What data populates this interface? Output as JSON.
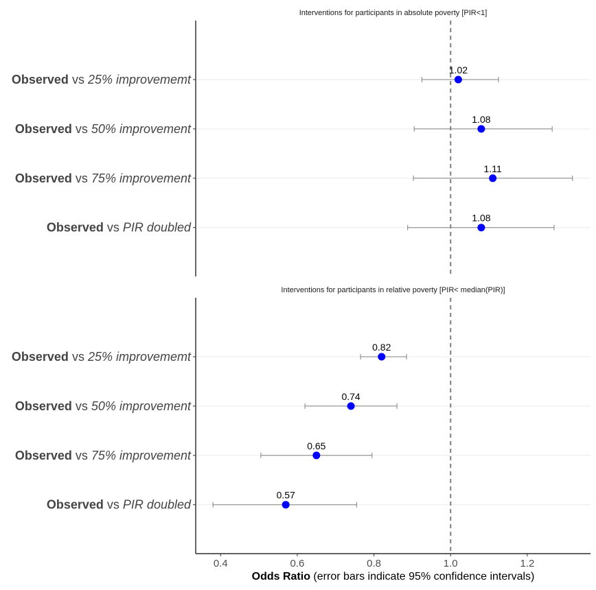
{
  "chart_data": {
    "type": "scatter",
    "xlabel_bold": "Odds Ratio",
    "xlabel_rest": " (error bars indicate 95% confidence intervals)",
    "x_ticks": [
      0.4,
      0.6,
      0.8,
      1.0,
      1.2
    ],
    "x_tick_labels": [
      "0.4",
      "0.6",
      "0.8",
      "1.0",
      "1.2"
    ],
    "xlim": [
      0.335,
      1.365
    ],
    "reference_line": 1.0,
    "point_color": "#0000ff",
    "errorbar_color": "#808080",
    "row_prefix": "Observed",
    "row_joiner": " vs ",
    "panels": [
      {
        "title": "Interventions for participants in absolute poverty [PIR<1]",
        "rows": [
          {
            "label": "25% improvememt",
            "or": 1.02,
            "lo": 0.925,
            "hi": 1.125,
            "text": "1.02"
          },
          {
            "label": "50% improvement",
            "or": 1.08,
            "lo": 0.905,
            "hi": 1.265,
            "text": "1.08"
          },
          {
            "label": "75% improvement",
            "or": 1.11,
            "lo": 0.903,
            "hi": 1.318,
            "text": "1.11"
          },
          {
            "label": "PIR doubled",
            "or": 1.08,
            "lo": 0.888,
            "hi": 1.27,
            "text": "1.08"
          }
        ]
      },
      {
        "title": "Interventions for participants in relative poverty [PIR< median(PIR)]",
        "rows": [
          {
            "label": "25% improvememt",
            "or": 0.82,
            "lo": 0.765,
            "hi": 0.885,
            "text": "0.82"
          },
          {
            "label": "50% improvement",
            "or": 0.74,
            "lo": 0.62,
            "hi": 0.86,
            "text": "0.74"
          },
          {
            "label": "75% improvement",
            "or": 0.65,
            "lo": 0.505,
            "hi": 0.795,
            "text": "0.65"
          },
          {
            "label": "PIR doubled",
            "or": 0.57,
            "lo": 0.38,
            "hi": 0.755,
            "text": "0.57"
          }
        ]
      }
    ]
  }
}
